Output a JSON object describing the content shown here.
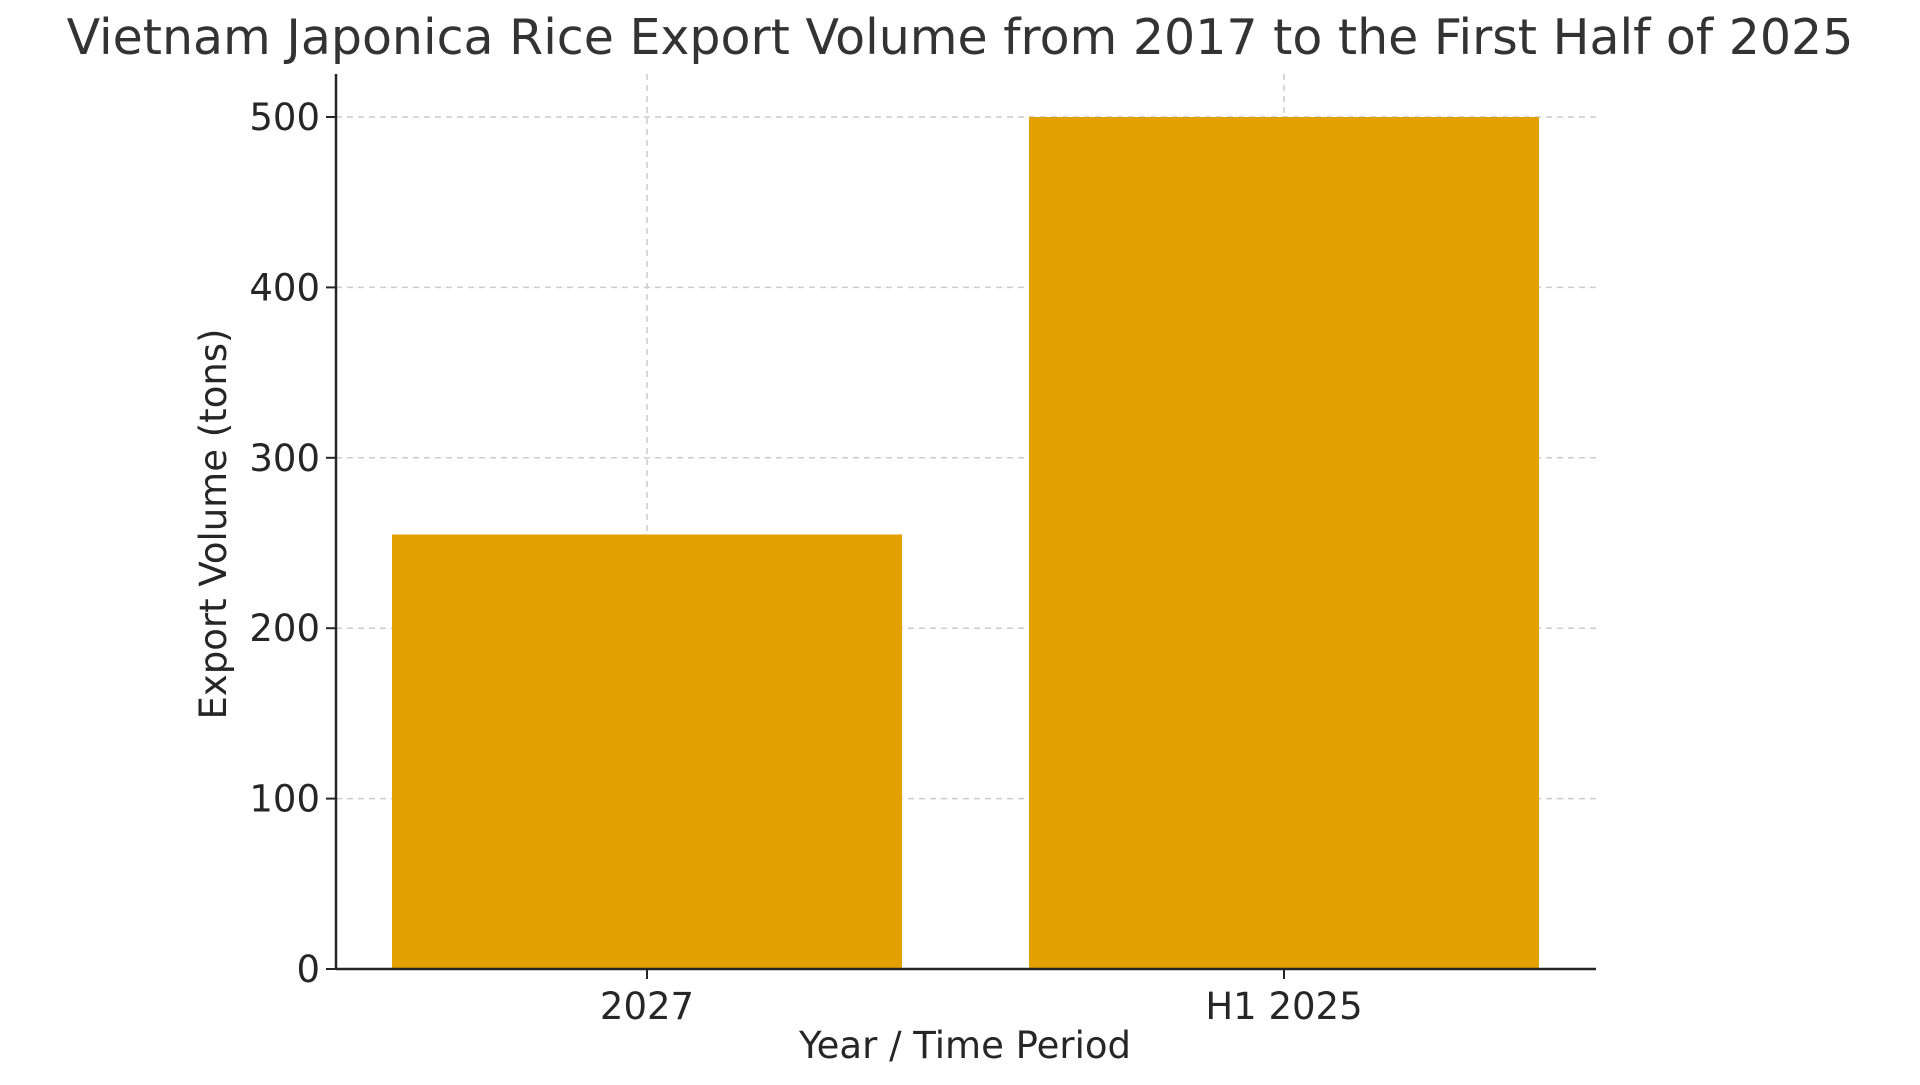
{
  "chart_data": {
    "type": "bar",
    "title": "Vietnam Japonica Rice Export Volume from 2017 to the First Half of 2025",
    "xlabel": "Year / Time Period",
    "ylabel": "Export Volume (tons)",
    "categories": [
      "2027",
      "H1 2025"
    ],
    "values": [
      255,
      500
    ],
    "ylim": [
      0,
      525
    ],
    "yticks": [
      0,
      100,
      200,
      300,
      400,
      500
    ],
    "grid": true,
    "bar_color": "#E3A100",
    "grid_color": "#cccccc",
    "axis_color": "#262626"
  }
}
